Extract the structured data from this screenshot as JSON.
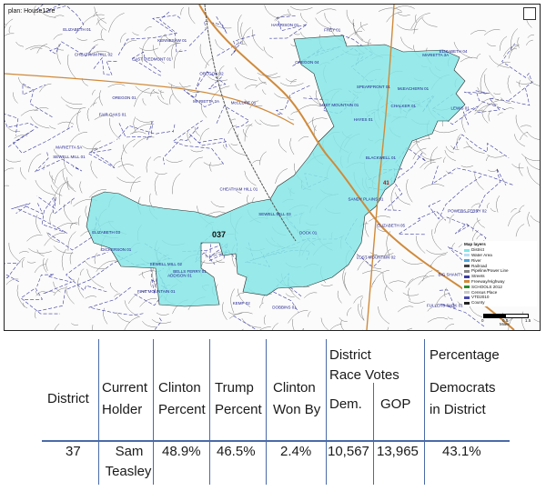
{
  "map": {
    "plan_title": "plan: House12re",
    "district_label": "037",
    "route_badge": "41",
    "legend": {
      "title": "Map layers",
      "items": [
        {
          "label": "District",
          "color": "#7fe5e5"
        },
        {
          "label": "Water Area",
          "color": "#b8dcf2"
        },
        {
          "label": "River",
          "color": "#4fa3d9"
        },
        {
          "label": "Railroad",
          "color": "#444444"
        },
        {
          "label": "Pipeline/Power Line",
          "color": "#888888"
        },
        {
          "label": "Streets",
          "color": "#3a3aa0"
        },
        {
          "label": "Freeway/Highway",
          "color": "#d08a3a"
        },
        {
          "label": "SCHOOLS 2012",
          "color": "#2e8b2e"
        },
        {
          "label": "Census Place",
          "color": "#c9c9c9"
        },
        {
          "label": "VTD2010",
          "color": "#4b4bb0"
        },
        {
          "label": "County",
          "color": "#222222"
        }
      ]
    },
    "scale": {
      "ticks": [
        "0",
        "0.5",
        "1.5"
      ],
      "unit": "Miles"
    },
    "road_labels": [
      "KENNESAW 01",
      "CHALKER 01",
      "BELLS FERRY 01",
      "ADDISON 01",
      "SANDY PLAINS 01",
      "LEWIS 01",
      "BIG SHANTY 01",
      "EAST PIEDMONT 01",
      "SPEARFRONT 01",
      "ELIZABETH 03",
      "FREY 01",
      "McCLURE 01",
      "HAYES 01",
      "LOST MOUNTAIN 01",
      "HARRISON 01",
      "ELIZABETH 05",
      "FINE MOUNTAIN 01",
      "ELIZABETH 01",
      "SEWELL MILL 01",
      "FULLERS PARK 01",
      "SEWELL MILL 02",
      "DOCK 01",
      "MARIETTA 5A",
      "CHEATHAM HILL 02",
      "KEMP 02",
      "CHEATHAM HILL 01",
      "MARIETTA 3A",
      "MARIETTA 2A",
      "DICKERSON 01",
      "OREGON 01",
      "OREGON 02",
      "DOBBINS 01",
      "POWERS FERRY 02",
      "SEWELL MILL 03",
      "LOST MOUNTAIN 02",
      "McEACHERN 01",
      "OREGON 04",
      "FAIR OAKS 01",
      "BLACKWELL 01",
      "ELIZABETH 04"
    ]
  },
  "table": {
    "headers": {
      "district": "District",
      "holder": [
        "Current",
        "Holder"
      ],
      "clinton": [
        "Clinton",
        "Percent"
      ],
      "trump": [
        "Trump",
        "Percent"
      ],
      "won_by": [
        "Clinton",
        "Won By"
      ],
      "race_votes_group": [
        "District",
        "Race Votes"
      ],
      "dem": "Dem.",
      "gop": "GOP",
      "pct_group": "Percentage",
      "dem_in_district": [
        "Democrats",
        "in District"
      ]
    },
    "row": {
      "district": "37",
      "holder": [
        "Sam",
        "Teasley"
      ],
      "clinton_percent": "48.9%",
      "trump_percent": "46.5%",
      "clinton_won_by": "2.4%",
      "dem_votes": "10,567",
      "gop_votes": "13,965",
      "pct_democrats": "43.1%"
    }
  }
}
